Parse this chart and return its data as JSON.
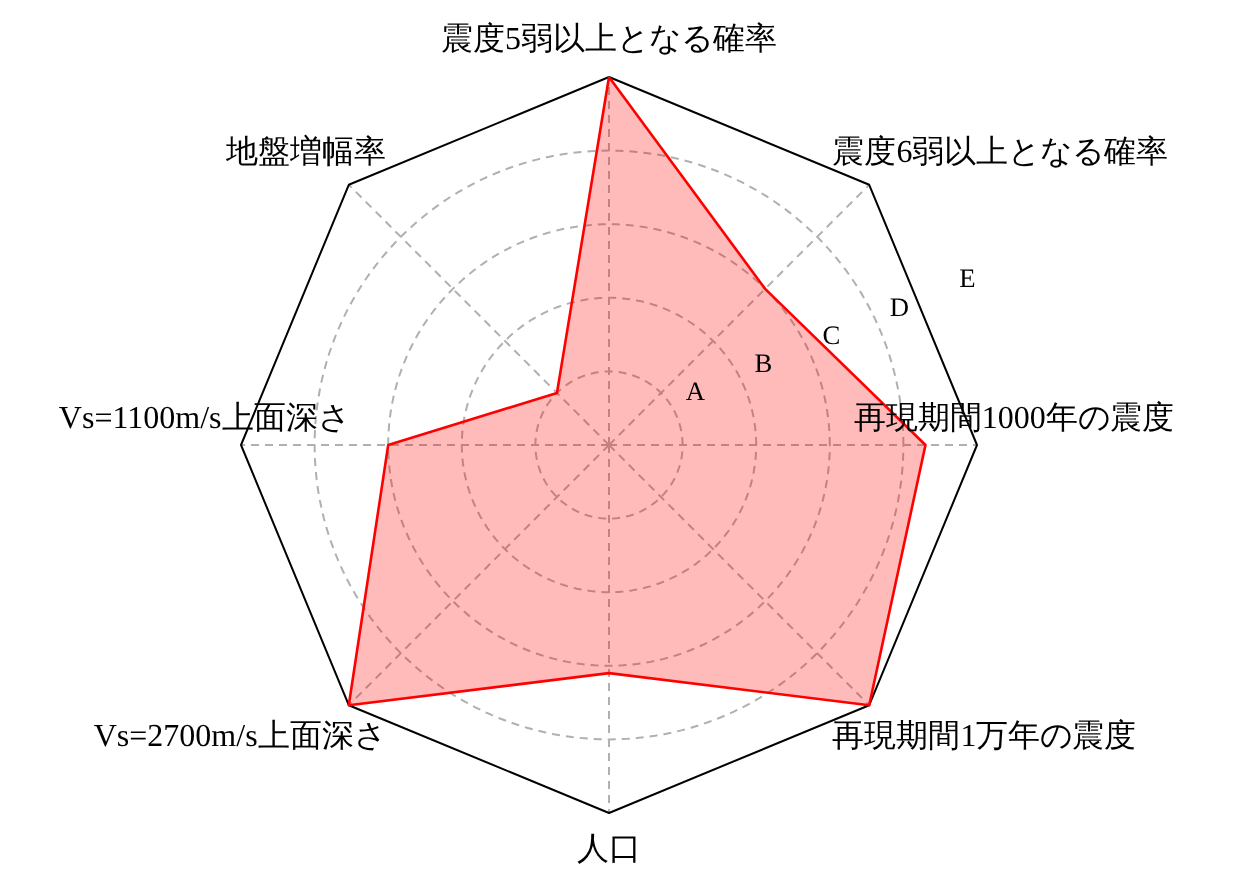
{
  "chart_data": {
    "type": "radar",
    "categories": [
      "震度5弱以上となる確率",
      "震度6弱以上となる確率",
      "再現期間1000年の震度",
      "再現期間1万年の震度",
      "人口",
      "Vs=2700m/s上面深さ",
      "Vs=1100m/s上面深さ",
      "地盤増幅率"
    ],
    "series": [
      {
        "color": "#ff0000",
        "values": [
          5,
          3,
          4.3,
          5,
          3.1,
          5,
          3,
          1
        ]
      }
    ],
    "ylim": [
      0,
      5
    ],
    "yticks": [
      {
        "value": 1,
        "label": "A"
      },
      {
        "value": 2,
        "label": "B"
      },
      {
        "value": 3,
        "label": "C"
      },
      {
        "value": 4,
        "label": "D"
      },
      {
        "value": 5,
        "label": "E"
      }
    ],
    "grid": true
  }
}
